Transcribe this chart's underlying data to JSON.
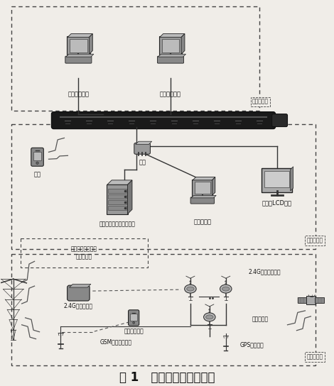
{
  "title": "图 1   起重机远程监控系统",
  "bg_color": "#f0ede8",
  "remote_label": "远程监控级",
  "lan_label": "局域监控级",
  "field_label": "现场监控级",
  "interface_label": "局域监控级和现场\n监控级接口",
  "node_total": "总公司监控站",
  "node_gov": "政府管理部门",
  "node_phone": "手机",
  "node_router": "路由",
  "node_server": "局域监控站信息处理中心",
  "node_lan": "局域监控站",
  "node_lcd": "触控式LCD显示",
  "node_coord": "2.4G网络协调器",
  "node_wireless": "无线手持设备",
  "node_gsm": "GSM无线通信模块",
  "node_node": "2.4G无线通信节点",
  "node_collector": "数据采集端",
  "node_gps": "GPS定位模块"
}
